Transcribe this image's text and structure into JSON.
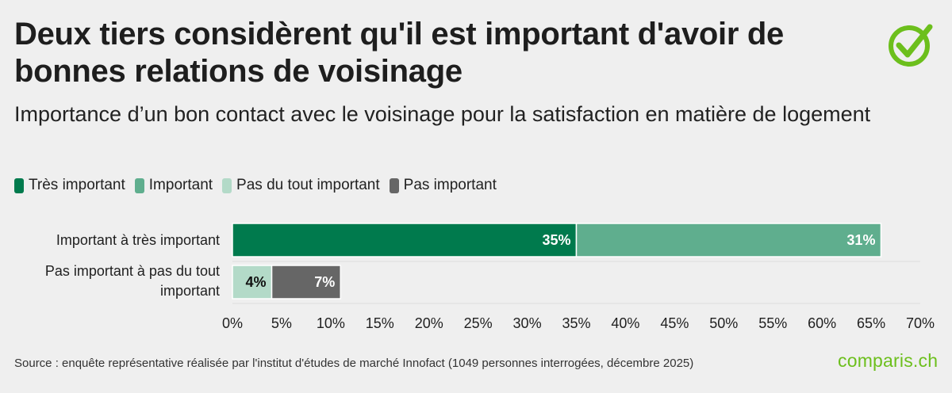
{
  "header": {
    "title": "Deux tiers considèrent qu'il est important d'avoir de bonnes relations de voisinage",
    "subtitle": "Importance d’un bon contact avec le voisinage pour la satisfaction en matière de logement"
  },
  "logo": {
    "icon": "checkmark-circle-icon",
    "color": "#6cbf1c"
  },
  "legend": {
    "items": [
      {
        "label": "Très important",
        "color": "#007a4d"
      },
      {
        "label": "Important",
        "color": "#5fae8e"
      },
      {
        "label": "Pas du tout important",
        "color": "#b3dac8"
      },
      {
        "label": "Pas important",
        "color": "#666666"
      }
    ]
  },
  "chart_data": {
    "type": "bar",
    "orientation": "horizontal",
    "stacked": true,
    "categories": [
      "Important à très important",
      "Pas important à pas du tout important"
    ],
    "series": [
      {
        "name": "Très important",
        "color": "#007a4d",
        "values": [
          35,
          0
        ],
        "labels": [
          "35%",
          ""
        ]
      },
      {
        "name": "Important",
        "color": "#5fae8e",
        "values": [
          31,
          0
        ],
        "labels": [
          "31%",
          ""
        ]
      },
      {
        "name": "Pas du tout important",
        "color": "#b3dac8",
        "values": [
          0,
          4
        ],
        "labels": [
          "",
          "4%"
        ]
      },
      {
        "name": "Pas important",
        "color": "#666666",
        "values": [
          0,
          7
        ],
        "labels": [
          "",
          "7%"
        ]
      }
    ],
    "xlim": [
      0,
      70
    ],
    "xticks": [
      0,
      5,
      10,
      15,
      20,
      25,
      30,
      35,
      40,
      45,
      50,
      55,
      60,
      65,
      70
    ],
    "tick_labels": [
      "0%",
      "5%",
      "10%",
      "15%",
      "20%",
      "25%",
      "30%",
      "35%",
      "40%",
      "45%",
      "50%",
      "55%",
      "60%",
      "65%",
      "70%"
    ],
    "legend_position": "top-left",
    "grid": false
  },
  "footer": {
    "source": "Source : enquête représentative réalisée par l'institut d'études de marché Innofact (1049 personnes interrogées, décembre 2025)",
    "brand": "comparis.ch"
  }
}
